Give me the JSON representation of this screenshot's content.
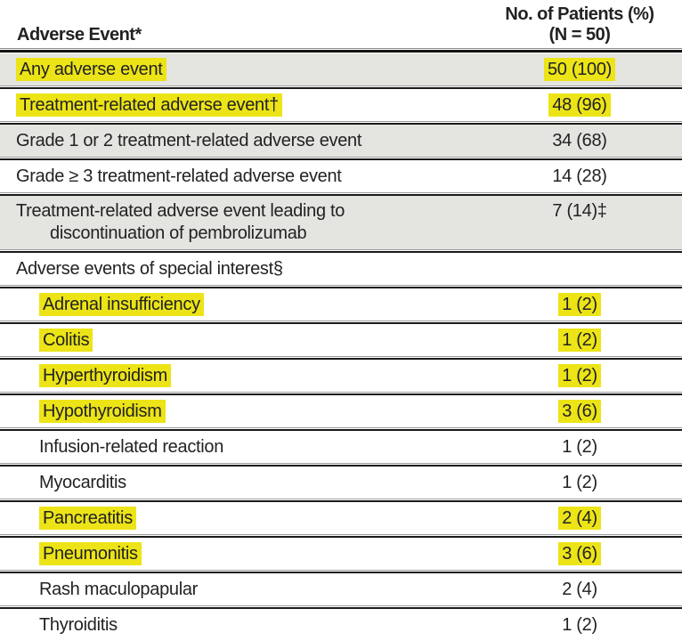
{
  "table": {
    "header": {
      "col_event": "Adverse Event*",
      "col_patients_line1": "No. of Patients (%)",
      "col_patients_line2": "(N = 50)"
    },
    "rows": [
      {
        "label": "Any adverse event",
        "value": "50 (100)",
        "highlighted": true,
        "shaded": true,
        "indent": false
      },
      {
        "label": "Treatment-related adverse event†",
        "value": "48 (96)",
        "highlighted": true,
        "shaded": false,
        "indent": false
      },
      {
        "label": "Grade 1 or 2 treatment-related adverse event",
        "value": "34 (68)",
        "highlighted": false,
        "shaded": true,
        "indent": false
      },
      {
        "label": "Grade ≥ 3 treatment-related adverse event",
        "value": "14 (28)",
        "highlighted": false,
        "shaded": false,
        "indent": false
      },
      {
        "label": "Treatment-related adverse event leading to",
        "label_line2": "discontinuation of pembrolizumab",
        "value": "7 (14)‡",
        "highlighted": false,
        "shaded": true,
        "indent": false
      },
      {
        "label": "Adverse events of special interest§",
        "value": "",
        "highlighted": false,
        "shaded": false,
        "indent": false
      },
      {
        "label": "Adrenal insufficiency",
        "value": "1 (2)",
        "highlighted": true,
        "shaded": false,
        "indent": true
      },
      {
        "label": "Colitis",
        "value": "1 (2)",
        "highlighted": true,
        "shaded": false,
        "indent": true
      },
      {
        "label": "Hyperthyroidism",
        "value": "1 (2)",
        "highlighted": true,
        "shaded": false,
        "indent": true
      },
      {
        "label": "Hypothyroidism",
        "value": "3 (6)",
        "highlighted": true,
        "shaded": false,
        "indent": true
      },
      {
        "label": "Infusion-related reaction",
        "value": "1 (2)",
        "highlighted": false,
        "shaded": false,
        "indent": true
      },
      {
        "label": "Myocarditis",
        "value": "1 (2)",
        "highlighted": false,
        "shaded": false,
        "indent": true
      },
      {
        "label": "Pancreatitis",
        "value": "2 (4)",
        "highlighted": true,
        "shaded": false,
        "indent": true
      },
      {
        "label": "Pneumonitis",
        "value": "3 (6)",
        "highlighted": true,
        "shaded": false,
        "indent": true
      },
      {
        "label": "Rash maculopapular",
        "value": "2 (4)",
        "highlighted": false,
        "shaded": false,
        "indent": true
      },
      {
        "label": "Thyroiditis",
        "value": "1 (2)",
        "highlighted": false,
        "shaded": false,
        "indent": true
      }
    ],
    "colors": {
      "highlight_yellow": "#ece417",
      "row_shade_gray": "#e4e4e1",
      "rule_black": "#1a1a1a"
    }
  }
}
